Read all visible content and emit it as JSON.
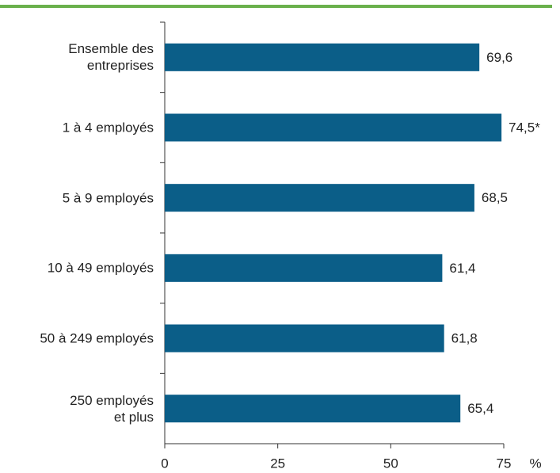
{
  "chart_data": {
    "type": "barh",
    "categories": [
      "Ensemble des\nentreprises",
      "1 à 4 employés",
      "5 à 9 employés",
      "10 à 49 employés",
      "50 à 249 employés",
      "250 employés\net plus"
    ],
    "values": [
      69.6,
      74.5,
      68.5,
      61.4,
      61.8,
      65.4
    ],
    "value_labels": [
      "69,6",
      "74,5*",
      "68,5",
      "61,4",
      "61,8",
      "65,4"
    ],
    "color": "#0b5e88",
    "xlim": [
      0,
      75
    ],
    "xticks": [
      0,
      25,
      50,
      75
    ],
    "xlabel": "%"
  }
}
